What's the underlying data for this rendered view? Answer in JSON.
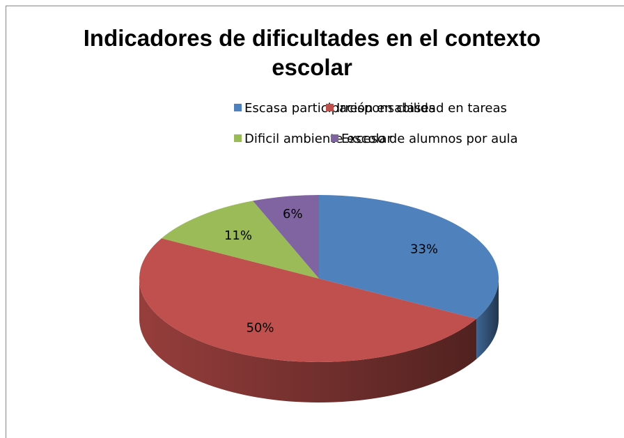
{
  "chart_data": {
    "type": "pie",
    "title": "Indicadores de dificultades en el contexto escolar",
    "categories": [
      "Escasa participación en clases",
      "Irresponsabilidad en tareas",
      "Dificil ambiente escolar",
      "Exceso de alumnos por aula"
    ],
    "values": [
      33,
      50,
      11,
      6
    ],
    "value_labels": [
      "33%",
      "50%",
      "11%",
      "6%"
    ],
    "colors": [
      "#4f81bd",
      "#c0504d",
      "#9bbb59",
      "#8064a2"
    ],
    "legend": "top"
  }
}
